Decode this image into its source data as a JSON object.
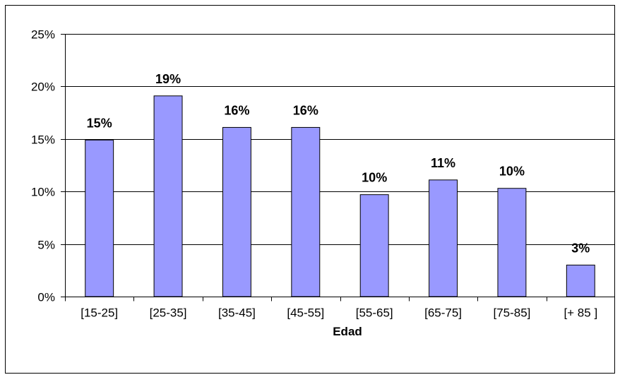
{
  "chart_data": {
    "type": "bar",
    "title": "",
    "xlabel": "Edad",
    "ylabel": "",
    "categories": [
      "[15-25]",
      "[25-35]",
      "[35-45]",
      "[45-55]",
      "[55-65]",
      "[65-75]",
      "[75-85]",
      "[+ 85 ]"
    ],
    "values": [
      14.9,
      19.1,
      16.1,
      16.1,
      9.7,
      11.1,
      10.3,
      3.0
    ],
    "data_labels": [
      "15%",
      "19%",
      "16%",
      "16%",
      "10%",
      "11%",
      "10%",
      "3%"
    ],
    "ylim": [
      0,
      25
    ],
    "yticks": [
      0,
      5,
      10,
      15,
      20,
      25
    ],
    "ytick_labels": [
      "0%",
      "5%",
      "10%",
      "15%",
      "20%",
      "25%"
    ],
    "grid": true,
    "legend": "none",
    "bar_color": "#9999ff",
    "bar_edge_color": "#000000"
  }
}
